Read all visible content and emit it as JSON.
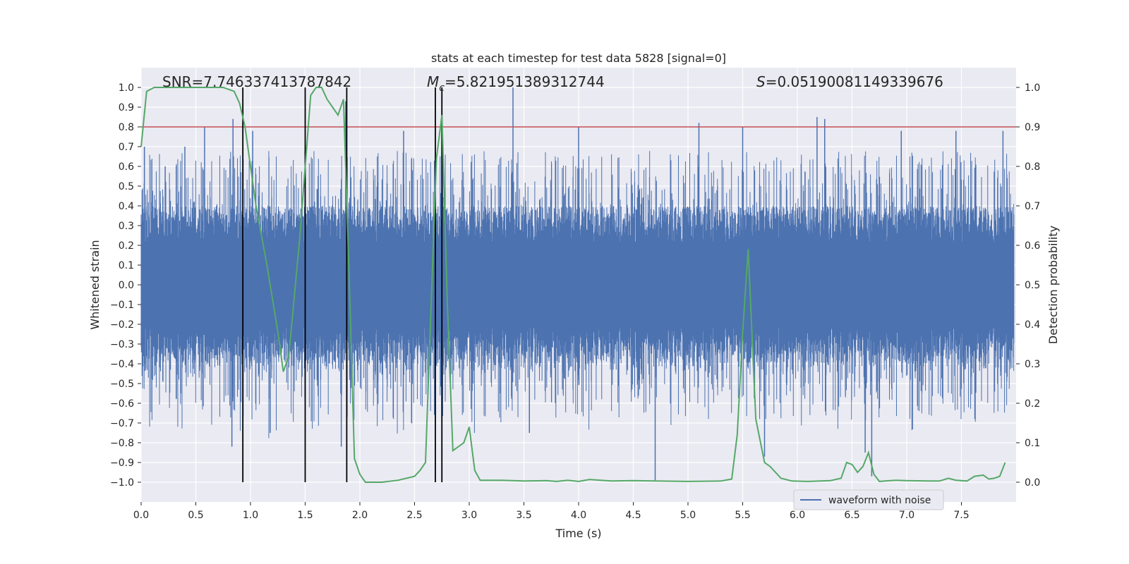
{
  "chart_data": {
    "type": "line",
    "title": "stats at each timestep for test data 5828 [signal=0]",
    "xlabel": "Time (s)",
    "ylabel": "Whitened strain",
    "y2label": "Detection probability",
    "xlim": [
      0.0,
      8.0
    ],
    "ylim": [
      -1.1,
      1.1
    ],
    "y2lim": [
      -0.05,
      1.05
    ],
    "x_ticks": [
      0.0,
      0.5,
      1.0,
      1.5,
      2.0,
      2.5,
      3.0,
      3.5,
      4.0,
      4.5,
      5.0,
      5.5,
      6.0,
      6.5,
      7.0,
      7.5
    ],
    "x_tick_labels": [
      "0.0",
      "0.5",
      "1.0",
      "1.5",
      "2.0",
      "2.5",
      "3.0",
      "3.5",
      "4.0",
      "4.5",
      "5.0",
      "5.5",
      "6.0",
      "6.5",
      "7.0",
      "7.5"
    ],
    "y_ticks": [
      1.0,
      0.9,
      0.8,
      0.7,
      0.6,
      0.5,
      0.4,
      0.3,
      0.2,
      0.1,
      0.0,
      -0.1,
      -0.2,
      -0.3,
      -0.4,
      -0.5,
      -0.6,
      -0.7,
      -0.8,
      -0.9,
      -1.0
    ],
    "y_tick_labels": [
      "1.0",
      "0.9",
      "0.8",
      "0.7",
      "0.6",
      "0.5",
      "0.4",
      "0.3",
      "0.2",
      "0.1",
      "0.0",
      "−0.1",
      "−0.2",
      "−0.3",
      "−0.4",
      "−0.5",
      "−0.6",
      "−0.7",
      "−0.8",
      "−0.9",
      "−1.0"
    ],
    "y2_ticks": [
      1.0,
      0.9,
      0.8,
      0.7,
      0.6,
      0.5,
      0.4,
      0.3,
      0.2,
      0.1,
      0.0
    ],
    "y2_tick_labels": [
      "1.0",
      "0.9",
      "0.8",
      "0.7",
      "0.6",
      "0.5",
      "0.4",
      "0.3",
      "0.2",
      "0.1",
      "0.0"
    ],
    "annotations": {
      "snr": "SNR=7.746337413787842",
      "mc_symbol": "M",
      "mc_sub": "c",
      "mc_value": "=5.821951389312744",
      "s_symbol": "S",
      "s_value": "=0.05190081149339676"
    },
    "legend": {
      "label": "waveform with noise",
      "position": "lower-right"
    },
    "threshold": {
      "value": 0.8,
      "axis": "left",
      "color": "#c44e52"
    },
    "vertical_lines": [
      0.93,
      1.5,
      1.88,
      2.69,
      2.75
    ],
    "series": [
      {
        "name": "waveform with noise",
        "axis": "left",
        "color": "#4c72b0",
        "kind": "noise",
        "typical_envelope": 0.4,
        "n_samples": 4096,
        "spikes": [
          {
            "x": 0.03,
            "y": 0.7
          },
          {
            "x": 0.22,
            "y": 0.6
          },
          {
            "x": 0.4,
            "y": 0.7
          },
          {
            "x": 0.58,
            "y": 0.8
          },
          {
            "x": 0.84,
            "y": 0.84
          },
          {
            "x": 0.83,
            "y": -0.82
          },
          {
            "x": 1.02,
            "y": 0.78
          },
          {
            "x": 1.18,
            "y": -0.75
          },
          {
            "x": 1.83,
            "y": -0.82
          },
          {
            "x": 1.87,
            "y": 0.93
          },
          {
            "x": 2.4,
            "y": 0.78
          },
          {
            "x": 3.4,
            "y": 1.0
          },
          {
            "x": 3.55,
            "y": -0.75
          },
          {
            "x": 4.0,
            "y": 0.8
          },
          {
            "x": 4.7,
            "y": -0.99
          },
          {
            "x": 5.1,
            "y": 0.82
          },
          {
            "x": 5.5,
            "y": 0.8
          },
          {
            "x": 5.7,
            "y": -0.87
          },
          {
            "x": 6.18,
            "y": 0.85
          },
          {
            "x": 6.25,
            "y": 0.84
          },
          {
            "x": 6.62,
            "y": -0.85
          },
          {
            "x": 6.68,
            "y": -0.97
          },
          {
            "x": 6.95,
            "y": 0.78
          },
          {
            "x": 7.45,
            "y": 0.78
          },
          {
            "x": 7.88,
            "y": 0.78
          }
        ]
      },
      {
        "name": "detection probability",
        "axis": "right",
        "color": "#55a868",
        "x": [
          0.0,
          0.05,
          0.12,
          0.25,
          0.5,
          0.75,
          0.85,
          0.9,
          0.95,
          1.0,
          1.05,
          1.15,
          1.25,
          1.3,
          1.35,
          1.45,
          1.55,
          1.6,
          1.65,
          1.7,
          1.75,
          1.8,
          1.85,
          1.9,
          1.95,
          2.0,
          2.05,
          2.2,
          2.35,
          2.5,
          2.55,
          2.6,
          2.65,
          2.7,
          2.75,
          2.8,
          2.85,
          2.95,
          3.0,
          3.05,
          3.1,
          3.3,
          3.5,
          3.7,
          3.8,
          3.9,
          4.0,
          4.1,
          4.3,
          4.5,
          4.7,
          5.0,
          5.3,
          5.4,
          5.45,
          5.5,
          5.55,
          5.62,
          5.7,
          5.75,
          5.85,
          5.95,
          6.1,
          6.3,
          6.4,
          6.45,
          6.5,
          6.55,
          6.6,
          6.65,
          6.7,
          6.75,
          6.8,
          6.9,
          7.0,
          7.2,
          7.3,
          7.38,
          7.45,
          7.55,
          7.62,
          7.7,
          7.75,
          7.8,
          7.85,
          7.9
        ],
        "values": [
          0.85,
          0.99,
          1.0,
          1.0,
          1.0,
          1.0,
          0.99,
          0.96,
          0.9,
          0.8,
          0.7,
          0.55,
          0.38,
          0.28,
          0.32,
          0.62,
          0.98,
          1.0,
          1.0,
          0.97,
          0.95,
          0.93,
          0.97,
          0.54,
          0.06,
          0.02,
          0.0,
          0.0,
          0.005,
          0.015,
          0.03,
          0.05,
          0.44,
          0.82,
          0.93,
          0.45,
          0.08,
          0.1,
          0.14,
          0.03,
          0.005,
          0.005,
          0.003,
          0.004,
          0.002,
          0.005,
          0.002,
          0.007,
          0.003,
          0.004,
          0.003,
          0.002,
          0.003,
          0.008,
          0.12,
          0.38,
          0.59,
          0.16,
          0.05,
          0.04,
          0.01,
          0.003,
          0.002,
          0.004,
          0.01,
          0.05,
          0.045,
          0.025,
          0.04,
          0.075,
          0.02,
          0.002,
          0.003,
          0.005,
          0.004,
          0.003,
          0.003,
          0.01,
          0.005,
          0.003,
          0.015,
          0.018,
          0.008,
          0.01,
          0.015,
          0.05
        ]
      }
    ]
  }
}
